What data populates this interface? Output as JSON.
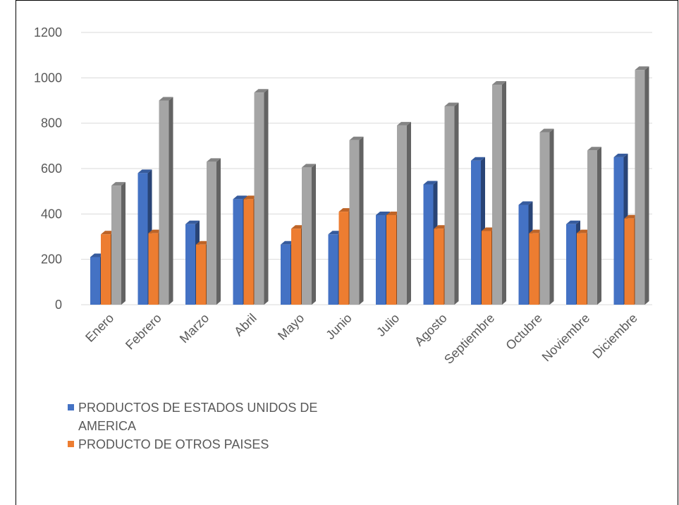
{
  "chart_data": {
    "type": "bar",
    "categories": [
      "Enero",
      "Febrero",
      "Marzo",
      "Abril",
      "Mayo",
      "Junio",
      "Julio",
      "Agosto",
      "Septiembre",
      "Octubre",
      "Noviembre",
      "Diciembre"
    ],
    "series": [
      {
        "name": "PRODUCTOS DE ESTADOS UNIDOS DE AMERICA",
        "color": "#4472C4",
        "values": [
          210,
          580,
          355,
          465,
          265,
          310,
          395,
          530,
          635,
          440,
          355,
          650
        ]
      },
      {
        "name": "PRODUCTO DE OTROS PAISES",
        "color": "#ED7D31",
        "values": [
          310,
          315,
          265,
          465,
          335,
          410,
          395,
          335,
          325,
          315,
          315,
          380
        ]
      },
      {
        "name": "",
        "color": "#A5A5A5",
        "values": [
          525,
          900,
          630,
          935,
          605,
          725,
          790,
          875,
          970,
          760,
          680,
          1035
        ]
      }
    ],
    "ylim": [
      0,
      1200
    ],
    "yticks": [
      "0",
      "200",
      "400",
      "600",
      "800",
      "1000",
      "1200"
    ],
    "title": "",
    "xlabel": "",
    "ylabel": "",
    "grid": true,
    "legend_position": "bottom-left",
    "style": "3d-clustered-column"
  },
  "legend": {
    "items": [
      {
        "label": "PRODUCTOS DE ESTADOS UNIDOS DE AMERICA",
        "color": "#4472C4"
      },
      {
        "label": "PRODUCTO DE OTROS PAISES",
        "color": "#ED7D31"
      }
    ]
  }
}
